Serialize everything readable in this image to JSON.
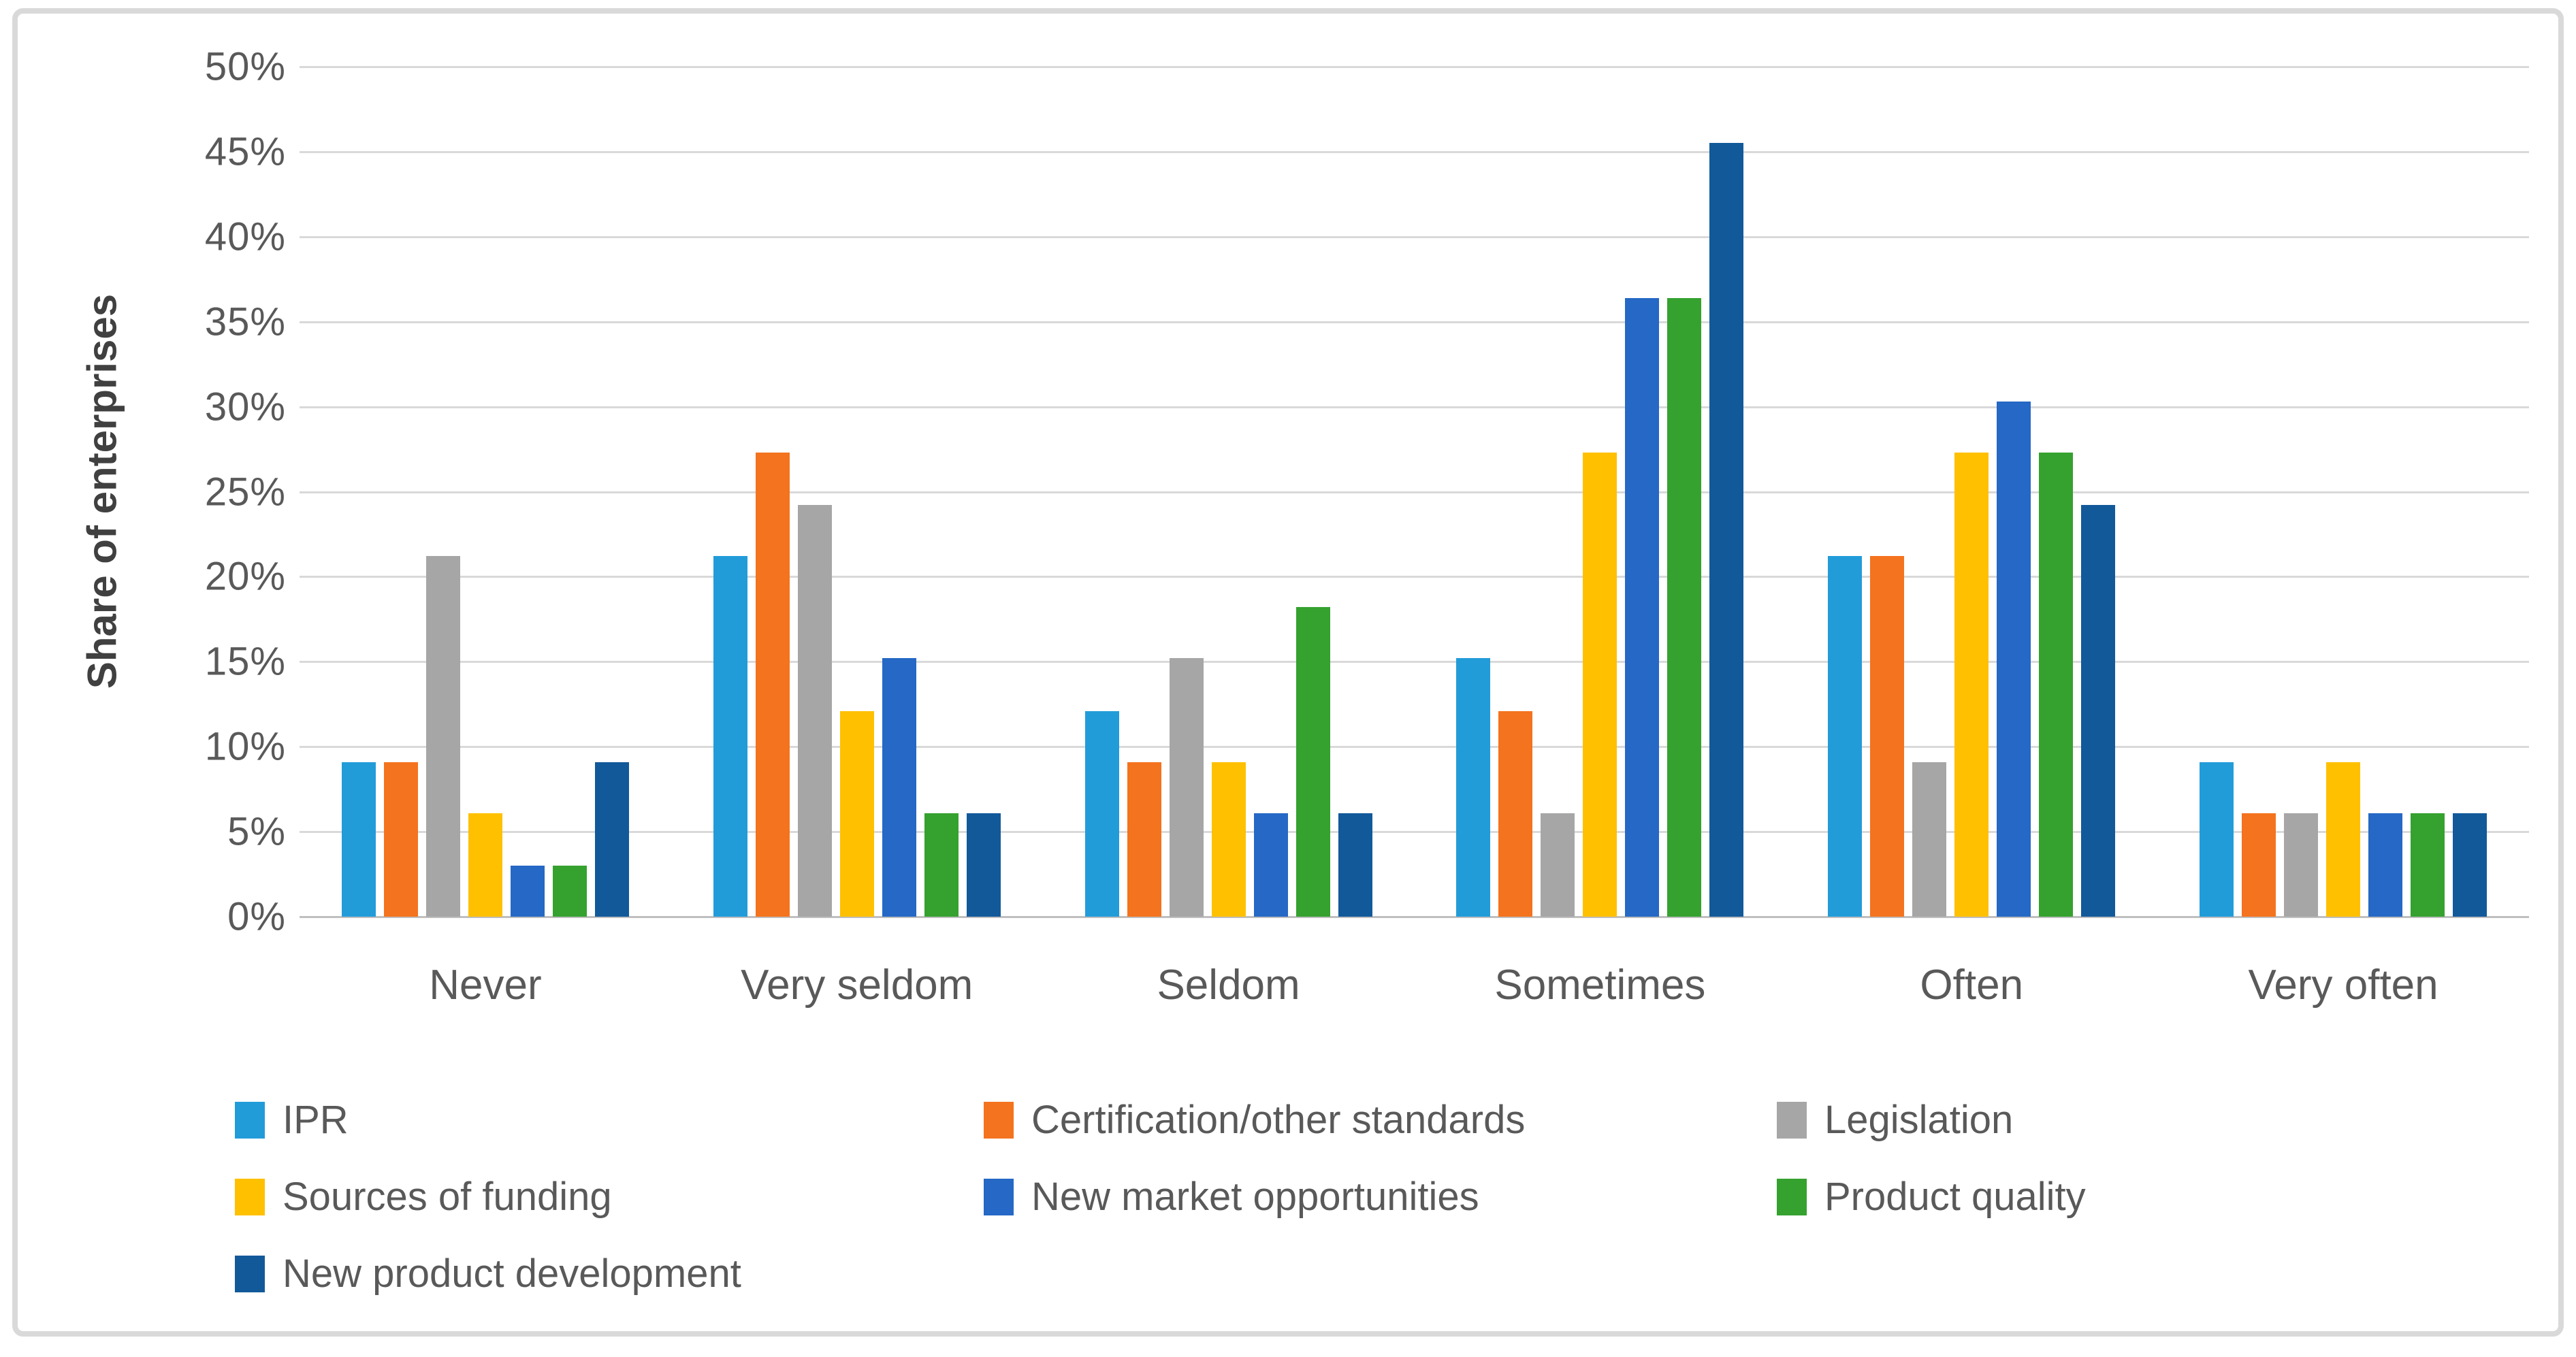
{
  "chart_data": {
    "type": "bar",
    "title": "",
    "xlabel": "",
    "ylabel": "Share of enterprises",
    "ylim": [
      0,
      50
    ],
    "ytick_step": 5,
    "ytick_suffix": "%",
    "grid": true,
    "legend_position": "bottom",
    "categories": [
      "Never",
      "Very seldom",
      "Seldom",
      "Sometimes",
      "Often",
      "Very often"
    ],
    "series": [
      {
        "name": "IPR",
        "color": "#229CD9",
        "values": [
          9.1,
          21.2,
          12.1,
          15.2,
          21.2,
          9.1
        ]
      },
      {
        "name": "Certification/other standards",
        "color": "#F4731E",
        "values": [
          9.1,
          27.3,
          9.1,
          12.1,
          21.2,
          6.1
        ]
      },
      {
        "name": "Legislation",
        "color": "#A6A6A6",
        "values": [
          21.2,
          24.2,
          15.2,
          6.1,
          9.1,
          6.1
        ]
      },
      {
        "name": "Sources of funding",
        "color": "#FFC000",
        "values": [
          6.1,
          12.1,
          9.1,
          27.3,
          27.3,
          9.1
        ]
      },
      {
        "name": "New market opportunities",
        "color": "#2568C5",
        "values": [
          3.0,
          15.2,
          6.1,
          36.4,
          30.3,
          6.1
        ]
      },
      {
        "name": "Product quality",
        "color": "#35A12F",
        "values": [
          3.0,
          6.1,
          18.2,
          36.4,
          27.3,
          6.1
        ]
      },
      {
        "name": "New product development",
        "color": "#12599A",
        "values": [
          9.1,
          6.1,
          6.1,
          45.5,
          24.2,
          6.1
        ]
      }
    ],
    "colors": {
      "gridline": "#D9D9D9",
      "axis_line": "#BFBFBF",
      "tick_text": "#595959",
      "axis_title_text": "#404040",
      "frame_border": "#D9D9D9"
    }
  }
}
